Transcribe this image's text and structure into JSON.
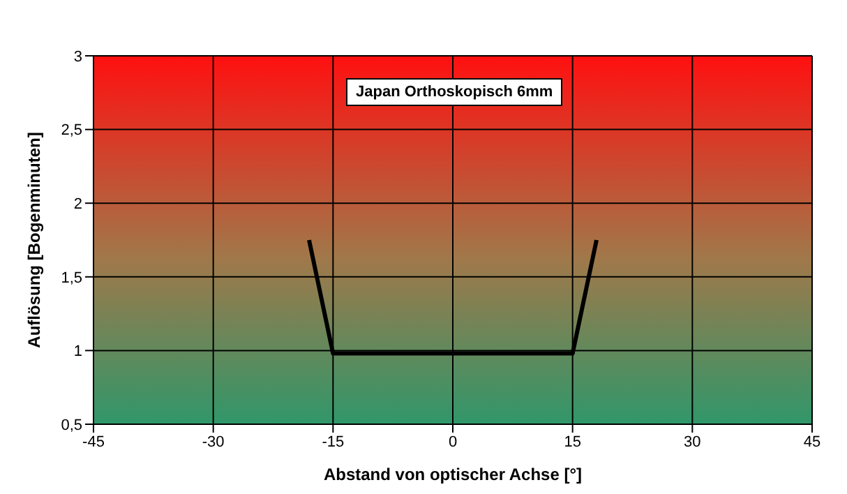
{
  "chart_data": {
    "type": "line",
    "title": "Japan Orthoskopisch 6mm",
    "xlabel": "Abstand von optischer Achse [°]",
    "ylabel": "Auflösung [Bogenminuten]",
    "x": [
      -18,
      -15,
      15,
      18
    ],
    "series": [
      {
        "color": "#000000",
        "values": [
          1.75,
          0.98,
          0.98,
          1.75
        ]
      }
    ],
    "xlim": [
      -45,
      45
    ],
    "xticks": [
      -45,
      -30,
      -15,
      0,
      15,
      30,
      45
    ],
    "ylim": [
      0.5,
      3
    ],
    "yticks": [
      {
        "value": 0.5,
        "label": "0,5"
      },
      1,
      {
        "value": 1.5,
        "label": "1,5"
      },
      2,
      {
        "value": 2.5,
        "label": "2,5"
      },
      3
    ],
    "grid": true,
    "legend": false,
    "marker": "none",
    "line_style": "solid"
  }
}
